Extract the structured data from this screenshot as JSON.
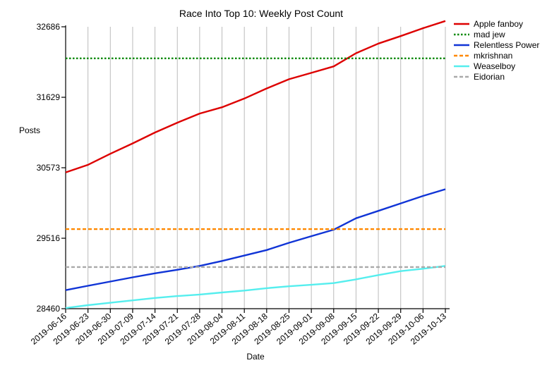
{
  "chart_data": {
    "type": "line",
    "title": "Race Into Top 10: Weekly Post Count",
    "xlabel": "Date",
    "ylabel": "Posts",
    "x": [
      "2019-06-16",
      "2019-06-23",
      "2019-06-30",
      "2019-07-09",
      "2019-07-14",
      "2019-07-21",
      "2019-07-28",
      "2019-08-04",
      "2019-08-11",
      "2019-08-18",
      "2019-08-25",
      "2019-09-01",
      "2019-09-08",
      "2019-09-15",
      "2019-09-22",
      "2019-09-29",
      "2019-10-06",
      "2019-10-13"
    ],
    "yticks": [
      28460,
      29516,
      30573,
      31629,
      32686
    ],
    "ylim": [
      28460,
      32686
    ],
    "grid": "vertical",
    "legend_position": "top-right",
    "series": [
      {
        "name": "Apple fanboy",
        "color": "#dd0000",
        "style": "solid",
        "values": [
          30503,
          30616,
          30782,
          30937,
          31101,
          31248,
          31385,
          31480,
          31610,
          31762,
          31900,
          31995,
          32092,
          32290,
          32435,
          32547,
          32665,
          32773
        ]
      },
      {
        "name": "mad jew",
        "color": "#008800",
        "style": "dotted",
        "values": [
          32213,
          32213,
          32213,
          32213,
          32213,
          32213,
          32213,
          32213,
          32213,
          32213,
          32213,
          32213,
          32213,
          32213,
          32213,
          32213,
          32213,
          32213
        ]
      },
      {
        "name": "Relentless Power",
        "color": "#1034d6",
        "style": "solid",
        "values": [
          28738,
          28803,
          28867,
          28930,
          28990,
          29043,
          29101,
          29175,
          29257,
          29339,
          29448,
          29547,
          29644,
          29816,
          29926,
          30038,
          30150,
          30251
        ]
      },
      {
        "name": "mkrishnan",
        "color": "#ff8800",
        "style": "dashed",
        "values": [
          29653,
          29653,
          29653,
          29653,
          29653,
          29653,
          29653,
          29653,
          29653,
          29653,
          29653,
          29653,
          29653,
          29653,
          29653,
          29653,
          29653,
          29653
        ]
      },
      {
        "name": "Weaselboy",
        "color": "#55eeee",
        "style": "solid",
        "values": [
          28469,
          28513,
          28549,
          28585,
          28621,
          28649,
          28672,
          28703,
          28732,
          28767,
          28796,
          28818,
          28844,
          28899,
          28964,
          29023,
          29059,
          29101
        ]
      },
      {
        "name": "Eidorian",
        "color": "#aaaaaa",
        "style": "dashed",
        "values": [
          29084,
          29084,
          29084,
          29084,
          29084,
          29084,
          29084,
          29084,
          29084,
          29084,
          29084,
          29084,
          29084,
          29084,
          29084,
          29084,
          29084,
          29084
        ]
      }
    ]
  }
}
